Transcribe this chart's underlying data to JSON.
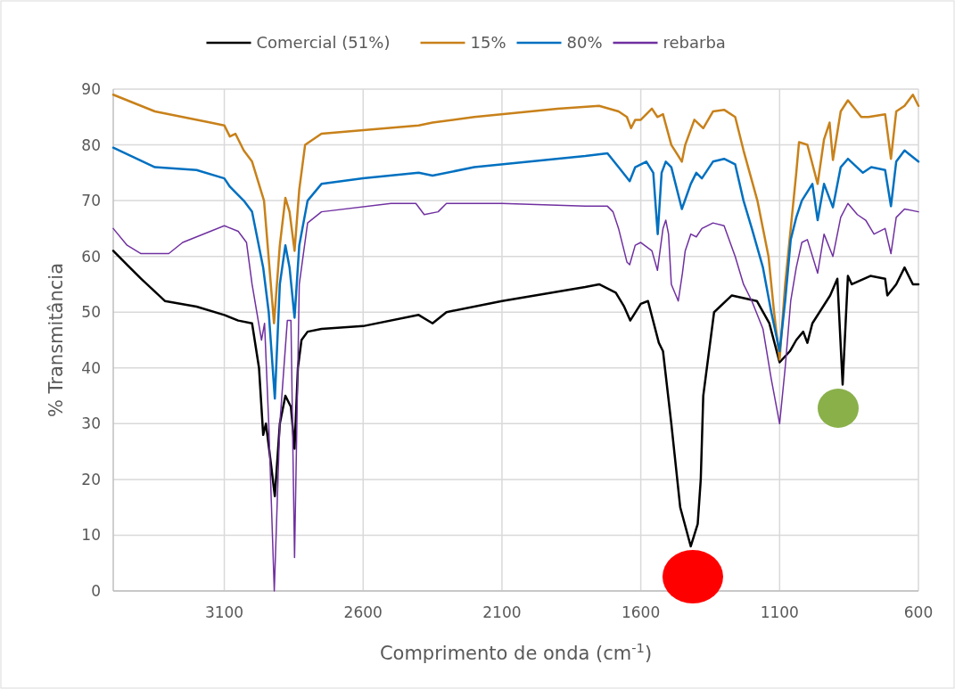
{
  "chart_data": {
    "type": "line",
    "xlabel": "Comprimento de onda (cm$^{-1}$)",
    "ylabel": "% Transmitância",
    "xlim": [
      3500,
      600
    ],
    "xticks": [
      3100,
      2600,
      2100,
      1600,
      1100,
      600
    ],
    "ylim": [
      0,
      90
    ],
    "yticks": [
      0,
      10,
      20,
      30,
      40,
      50,
      60,
      70,
      80,
      90
    ],
    "grid": true,
    "legend": "top",
    "marker": "none",
    "line_style": "solid",
    "series": [
      {
        "name": "Comercial (51%)",
        "color": "#000000",
        "x": [
          3500,
          3450,
          3400,
          3314,
          3200,
          3100,
          3050,
          3000,
          2975,
          2960,
          2950,
          2935,
          2918,
          2900,
          2880,
          2860,
          2847,
          2835,
          2822,
          2800,
          2750,
          2600,
          2400,
          2350,
          2300,
          2100,
          1800,
          1750,
          1690,
          1660,
          1638,
          1600,
          1574,
          1535,
          1520,
          1490,
          1458,
          1420,
          1395,
          1384,
          1375,
          1336,
          1272,
          1182,
          1137,
          1100,
          1063,
          1040,
          1015,
          1000,
          982,
          918,
          892,
          873,
          854,
          840,
          773,
          720,
          712,
          680,
          650,
          620,
          600
        ],
        "values": [
          61,
          58.5,
          56,
          52,
          51,
          49.5,
          48.5,
          48,
          40,
          28,
          30,
          24,
          17,
          30,
          35,
          33,
          25.5,
          40,
          45,
          46.5,
          47,
          47.5,
          49.5,
          48,
          50,
          52,
          54.5,
          55,
          53.5,
          51,
          48.5,
          51.5,
          52,
          44.5,
          43,
          30,
          15,
          8,
          12,
          20,
          35,
          50,
          53,
          52,
          48,
          41,
          43,
          45,
          46.5,
          44.5,
          48,
          53,
          56,
          37,
          56.5,
          55,
          56.5,
          56,
          53,
          55,
          58,
          55,
          55
        ]
      },
      {
        "name": "15%",
        "color": "#c8811a",
        "x": [
          3500,
          3350,
          3150,
          3100,
          3080,
          3060,
          3030,
          3000,
          2957,
          2921,
          2900,
          2880,
          2865,
          2847,
          2830,
          2809,
          2750,
          2400,
          2350,
          2200,
          1900,
          1750,
          1680,
          1650,
          1635,
          1620,
          1600,
          1560,
          1540,
          1520,
          1490,
          1452,
          1440,
          1407,
          1375,
          1340,
          1300,
          1260,
          1230,
          1180,
          1140,
          1120,
          1100,
          1080,
          1060,
          1040,
          1030,
          1000,
          963,
          940,
          920,
          908,
          880,
          854,
          806,
          780,
          720,
          699,
          680,
          650,
          620,
          600
        ],
        "values": [
          89,
          86,
          84,
          83.5,
          81.5,
          82,
          79,
          77,
          70,
          48,
          62,
          70.5,
          68,
          61,
          72,
          80,
          82,
          83.5,
          84,
          85,
          86.5,
          87,
          86,
          85,
          83,
          84.5,
          84.5,
          86.5,
          85,
          85.5,
          80,
          77,
          80,
          84.5,
          83,
          86,
          86.3,
          85,
          79,
          70,
          60,
          50,
          41.5,
          55,
          65,
          75,
          80.5,
          80,
          73,
          81,
          84,
          77.3,
          86,
          88,
          85,
          85,
          85.5,
          77.5,
          86,
          87,
          89,
          87
        ]
      },
      {
        "name": "80%",
        "color": "#0070c0",
        "x": [
          3500,
          3350,
          3200,
          3100,
          3080,
          3050,
          3030,
          3000,
          2960,
          2940,
          2918,
          2900,
          2880,
          2865,
          2847,
          2830,
          2800,
          2750,
          2600,
          2400,
          2350,
          2200,
          2000,
          1800,
          1720,
          1680,
          1640,
          1620,
          1580,
          1555,
          1539,
          1525,
          1510,
          1490,
          1452,
          1420,
          1400,
          1380,
          1340,
          1300,
          1260,
          1230,
          1200,
          1160,
          1130,
          1100,
          1080,
          1060,
          1040,
          1020,
          982,
          963,
          940,
          908,
          880,
          854,
          800,
          770,
          720,
          699,
          680,
          650,
          600
        ],
        "values": [
          79.5,
          76,
          75.5,
          74,
          72.5,
          71,
          70,
          68,
          58,
          50,
          34.5,
          55,
          62,
          58,
          49,
          62,
          70,
          73,
          74,
          75,
          74.5,
          76,
          77,
          78,
          78.5,
          76,
          73.5,
          76,
          77,
          75,
          64,
          75,
          77,
          76,
          68.5,
          73,
          75,
          74,
          77,
          77.5,
          76.5,
          70,
          65,
          58,
          50,
          43,
          52,
          63,
          67,
          70,
          73,
          66.5,
          73,
          68.8,
          76,
          77.5,
          75,
          76,
          75.5,
          69,
          77,
          79,
          77
        ]
      },
      {
        "name": "rebarba",
        "color": "#7030a0",
        "x": [
          3500,
          3450,
          3400,
          3300,
          3250,
          3150,
          3100,
          3050,
          3020,
          3000,
          2966,
          2955,
          2940,
          2920,
          2900,
          2873,
          2860,
          2847,
          2830,
          2800,
          2750,
          2500,
          2410,
          2380,
          2330,
          2300,
          2100,
          1800,
          1720,
          1700,
          1680,
          1650,
          1640,
          1620,
          1600,
          1560,
          1540,
          1520,
          1510,
          1500,
          1490,
          1465,
          1450,
          1440,
          1420,
          1400,
          1380,
          1340,
          1300,
          1260,
          1230,
          1200,
          1160,
          1130,
          1100,
          1080,
          1060,
          1040,
          1020,
          1000,
          963,
          940,
          908,
          880,
          854,
          820,
          790,
          760,
          720,
          699,
          680,
          650,
          600
        ],
        "values": [
          65,
          62,
          60.5,
          60.5,
          62.5,
          64.5,
          65.5,
          64.5,
          62.5,
          55,
          45,
          48,
          30,
          0,
          30,
          48.5,
          48.5,
          6,
          55,
          66,
          68,
          69.5,
          69.5,
          67.5,
          68,
          69.5,
          69.5,
          69,
          69,
          68,
          65,
          59,
          58.5,
          62,
          62.5,
          61,
          57.5,
          65,
          66.5,
          64,
          55,
          52,
          57,
          61,
          64,
          63.5,
          65,
          66,
          65.5,
          60,
          55,
          52,
          47,
          38,
          30,
          40,
          52,
          58,
          62.5,
          63,
          57,
          64,
          60,
          67,
          69.5,
          67.5,
          66.5,
          64,
          65,
          60.5,
          67,
          68.5,
          68
        ]
      }
    ]
  }
}
